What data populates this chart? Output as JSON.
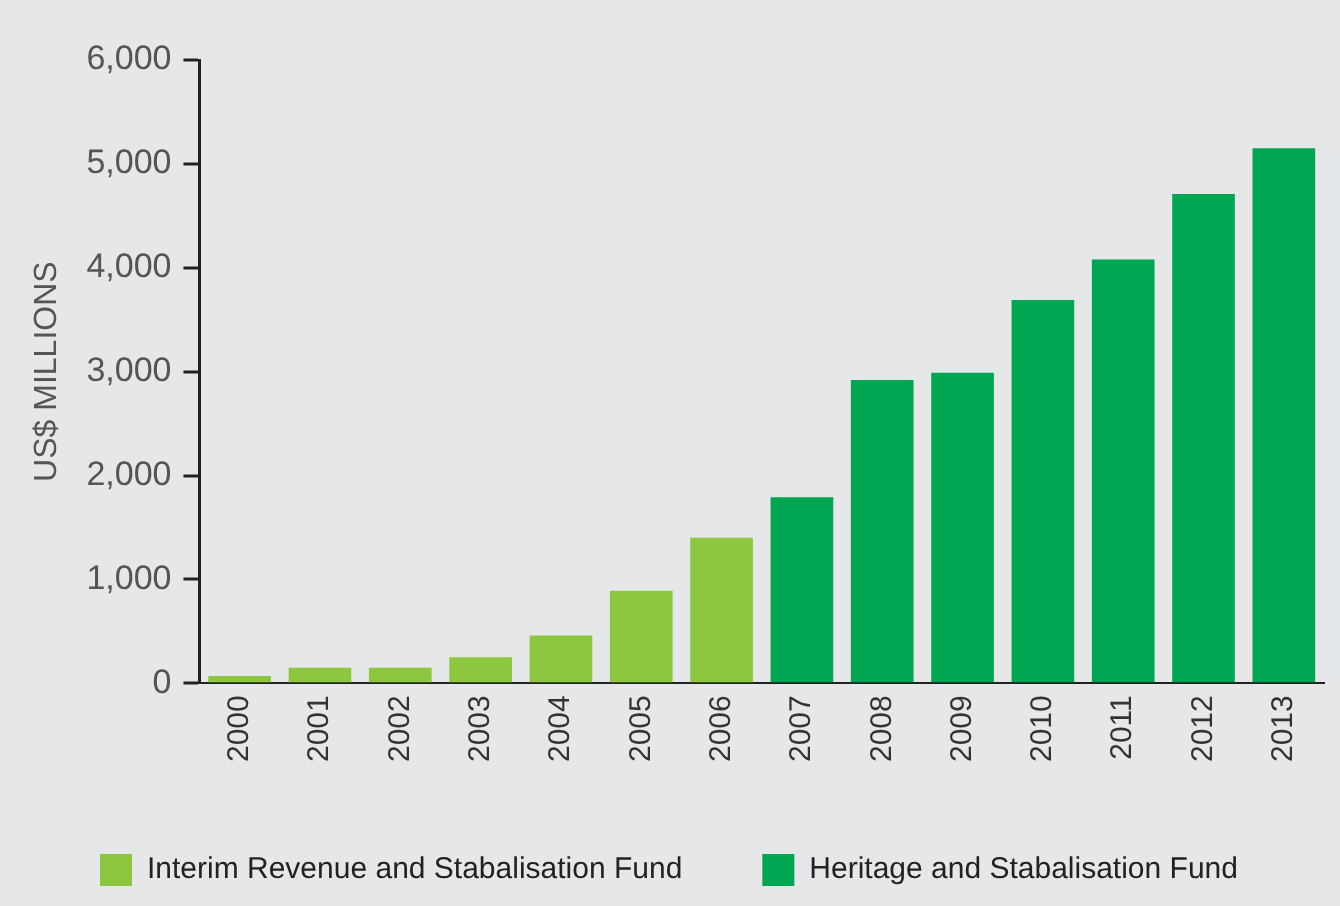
{
  "chart_data": {
    "type": "bar",
    "ylabel": "US$ MILLIONS",
    "categories": [
      "2000",
      "2001",
      "2002",
      "2003",
      "2004",
      "2005",
      "2006",
      "2007",
      "2008",
      "2009",
      "2010",
      "2011",
      "2012",
      "2013"
    ],
    "series": [
      {
        "name": "Interim Revenue and Stabalisation Fund",
        "color": "#8dc63f",
        "values": [
          70,
          150,
          150,
          250,
          460,
          890,
          1400,
          null,
          null,
          null,
          null,
          null,
          null,
          null
        ]
      },
      {
        "name": "Heritage and Stabalisation Fund",
        "color": "#00a651",
        "values": [
          null,
          null,
          null,
          null,
          null,
          null,
          null,
          1790,
          2920,
          2990,
          3690,
          4080,
          4710,
          5150
        ]
      }
    ],
    "ylim": [
      0,
      6000
    ],
    "yticks": [
      {
        "value": 0,
        "label": "0"
      },
      {
        "value": 1000,
        "label": "1,000"
      },
      {
        "value": 2000,
        "label": "2,000"
      },
      {
        "value": 3000,
        "label": "3,000"
      },
      {
        "value": 4000,
        "label": "4,000"
      },
      {
        "value": 5000,
        "label": "5,000"
      },
      {
        "value": 6000,
        "label": "6,000"
      }
    ],
    "grid": false,
    "legend": "bottom"
  }
}
